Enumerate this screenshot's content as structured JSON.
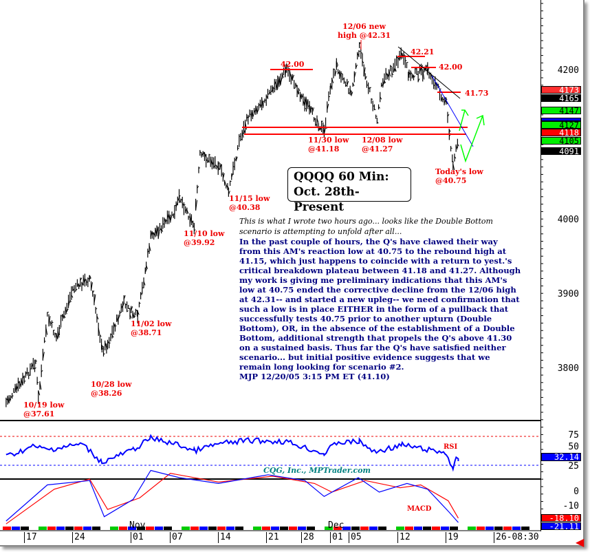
{
  "chart_data": {
    "type": "ohlc-bar",
    "title": "QQQQ 60 Min:",
    "subtitle": "Oct. 28th-Present",
    "price_axis": {
      "ticks": [
        "4200",
        "4000",
        "3900",
        "3800"
      ],
      "ylim": [
        3740,
        4290
      ]
    },
    "date_axis": {
      "months": [
        "Nov",
        "Dec"
      ],
      "ticks": [
        "17",
        "24",
        "01",
        "07",
        "14",
        "21",
        "28",
        "01",
        "05",
        "12",
        "19",
        "26-08:30"
      ]
    },
    "price_series": [
      [
        "10/14 12:00",
        3756
      ],
      [
        "10/17 11:00",
        3790
      ],
      [
        "10/18 14:00",
        3811
      ],
      [
        "10/19 10:00",
        3761
      ],
      [
        "10/20 12:00",
        3871
      ],
      [
        "10/21 14:00",
        3843
      ],
      [
        "10/24 10:00",
        3908
      ],
      [
        "10/26 12:00",
        3922
      ],
      [
        "10/27 12:00",
        3871
      ],
      [
        "10/28 10:00",
        3826
      ],
      [
        "10/28 15:00",
        3834
      ],
      [
        "10/31 10:00",
        3889
      ],
      [
        "11/01 10:00",
        3876
      ],
      [
        "11/02 10:00",
        3871
      ],
      [
        "11/03 12:00",
        3940
      ],
      [
        "11/04 10:00",
        3977
      ],
      [
        "11/07 14:00",
        4009
      ],
      [
        "11/08 12:00",
        4032
      ],
      [
        "11/10 13:00",
        3992
      ],
      [
        "11/11 12:00",
        4087
      ],
      [
        "11/14 10:00",
        4074
      ],
      [
        "11/15 13:00",
        4038
      ],
      [
        "11/17 10:00",
        4106
      ],
      [
        "11/18 12:00",
        4138
      ],
      [
        "11/22 12:00",
        4175
      ],
      [
        "11/25 10:00",
        4203
      ],
      [
        "11/28 12:00",
        4157
      ],
      [
        "11/30 12:00",
        4118
      ],
      [
        "12/01 10:00",
        4180
      ],
      [
        "12/02 12:00",
        4207
      ],
      [
        "12/05 12:00",
        4170
      ],
      [
        "12/06 13:00",
        4231
      ],
      [
        "12/07 12:00",
        4194
      ],
      [
        "12/09 10:00",
        4134
      ],
      [
        "12/09 14:00",
        4184
      ],
      [
        "12/12 14:00",
        4221
      ],
      [
        "12/13 14:00",
        4194
      ],
      [
        "12/16 12:00",
        4200
      ],
      [
        "12/19 10:00",
        4157
      ],
      [
        "12/19 13:00",
        4115
      ],
      [
        "12/20 10:00",
        4075
      ],
      [
        "12/20 15:00",
        4106
      ]
    ],
    "price_boxes": [
      {
        "value": "4173",
        "color": "#ff3030"
      },
      {
        "value": "4165",
        "color": "#000000"
      },
      {
        "value": "4147",
        "color": "#00ee00"
      },
      {
        "value": "",
        "color": "#0000ff"
      },
      {
        "value": "4127",
        "color": "#00ee00"
      },
      {
        "value": "4118",
        "color": "#ff0000"
      },
      {
        "value": "4105",
        "color": "#00ee00"
      },
      {
        "value": "4091",
        "color": "#000000"
      }
    ],
    "levels": {
      "resistance_1": "42.00",
      "resistance_2": "42.21",
      "resistance_3": "42.00",
      "resistance_4": "41.73"
    },
    "annotations": {
      "a1019": [
        "10/19 low",
        "@37.61"
      ],
      "a1028": [
        "10/28 low",
        "@38.26"
      ],
      "a1102": [
        "11/02 low",
        "@38.71"
      ],
      "a1110": [
        "11/10 low",
        "@39.92"
      ],
      "a1115": [
        "11/15 low",
        "@40.38"
      ],
      "a1130": [
        "11/30 low",
        "@41.18"
      ],
      "a1208": [
        "12/08 low",
        "@41.27"
      ],
      "a1206": [
        "12/06 new",
        "high @42.31"
      ],
      "today": [
        "Today's low",
        "@40.75"
      ]
    },
    "rsi": {
      "label": "RSI",
      "ticks": [
        "75",
        "50",
        "25"
      ],
      "last": "32.14",
      "overbought": 75,
      "oversold": 25,
      "values": [
        [
          "10/14 12:00",
          40
        ],
        [
          "10/18 12:00",
          58
        ],
        [
          "10/20 12:00",
          52
        ],
        [
          "10/25 12:00",
          62
        ],
        [
          "10/28 10:00",
          30
        ],
        [
          "11/01 12:00",
          52
        ],
        [
          "11/04 10:00",
          72
        ],
        [
          "11/08 12:00",
          60
        ],
        [
          "11/10 13:00",
          50
        ],
        [
          "11/14 10:00",
          62
        ],
        [
          "11/18 12:00",
          68
        ],
        [
          "11/25 10:00",
          66
        ],
        [
          "11/30 12:00",
          45
        ],
        [
          "12/02 12:00",
          64
        ],
        [
          "12/06 13:00",
          66
        ],
        [
          "12/08 14:00",
          48
        ],
        [
          "12/12 14:00",
          60
        ],
        [
          "12/15 12:00",
          54
        ],
        [
          "12/19 10:00",
          46
        ],
        [
          "12/20 10:00",
          19
        ],
        [
          "12/20 13:00",
          35
        ],
        [
          "12/20 15:00",
          32.14
        ]
      ]
    },
    "macd": {
      "label": "MACD",
      "ticks": [
        "0",
        "-10"
      ],
      "last_macd": "-18.10",
      "last_signal": "-21.11",
      "macd_values": [
        [
          "10/14 12:00",
          -20
        ],
        [
          "10/20 12:00",
          5
        ],
        [
          "10/26 12:00",
          8
        ],
        [
          "10/28 12:00",
          -17
        ],
        [
          "11/01 12:00",
          -5
        ],
        [
          "11/04 10:00",
          15
        ],
        [
          "11/08 12:00",
          10
        ],
        [
          "11/14 10:00",
          6
        ],
        [
          "11/21 12:00",
          12
        ],
        [
          "11/28 12:00",
          8
        ],
        [
          "11/30 12:00",
          -3
        ],
        [
          "12/06 12:00",
          10
        ],
        [
          "12/09 12:00",
          0
        ],
        [
          "12/13 12:00",
          6
        ],
        [
          "12/16 12:00",
          2
        ],
        [
          "12/19 13:00",
          -14
        ],
        [
          "12/20 15:00",
          -21
        ]
      ],
      "signal_values": [
        [
          "10/14 12:00",
          -22
        ],
        [
          "10/21 12:00",
          2
        ],
        [
          "10/26 12:00",
          9
        ],
        [
          "10/28 15:00",
          -12
        ],
        [
          "11/02 12:00",
          -4
        ],
        [
          "11/07 10:00",
          13
        ],
        [
          "11/14 10:00",
          7
        ],
        [
          "11/22 12:00",
          11
        ],
        [
          "11/29 12:00",
          6
        ],
        [
          "12/01 12:00",
          0
        ],
        [
          "12/07 12:00",
          8
        ],
        [
          "12/12 12:00",
          3
        ],
        [
          "12/15 12:00",
          5
        ],
        [
          "12/19 12:00",
          -6
        ],
        [
          "12/20 15:00",
          -18
        ]
      ]
    }
  },
  "watermark": "CQG, Inc., MPTrader.com",
  "commentary": {
    "italic": [
      "This is what I wrote two hours ago... looks like the Double Bottom",
      "scenario is attempting to unfold after all..."
    ],
    "bold": [
      "In the past couple of hours, the Q's have clawed their way",
      "from this AM's reaction low at 40.75 to the rebound high at",
      "41.15, which just happens to coincide with a return to yest.'s",
      "critical breakdown plateau between 41.18 and 41.27. Although",
      "my work is giving me preliminary indications that this AM's",
      "low at 40.75 ended the corrective decline from the 12/06 high",
      "at 42.31-- and started a new upleg-- we need confirmation that",
      "such a low is in place EITHER in the form of a pullback that",
      "successfully tests 40.75 prior to another upturn (Double",
      "Bottom), OR, in the absence of the establishment of a Double",
      "Bottom, additional strength that propels the Q's above 41.30",
      "on a sustained basis. Thus far the Q's have satisfied neither",
      "scenario... but initial positive evidence suggests that we",
      "remain long looking for scenario #2.",
      "MJP  12/20/05 3:15 PM ET (41.10)"
    ]
  }
}
